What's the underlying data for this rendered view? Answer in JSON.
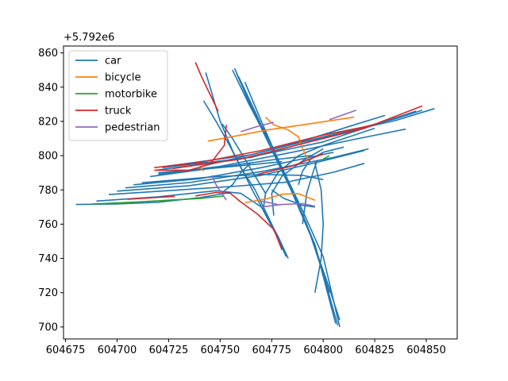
{
  "chart_data": {
    "type": "line",
    "title": "",
    "xlabel": "",
    "ylabel": "",
    "y_offset_label": "+5.792e6",
    "xlim": [
      604674,
      604865
    ],
    "ylim": [
      693,
      864
    ],
    "x_ticks": [
      604675,
      604700,
      604725,
      604750,
      604775,
      604800,
      604825,
      604850
    ],
    "x_tick_labels": [
      "604675",
      "604700",
      "604725",
      "604750",
      "604775",
      "604800",
      "604825",
      "604850"
    ],
    "y_ticks": [
      700,
      720,
      740,
      760,
      780,
      800,
      820,
      840,
      860
    ],
    "y_tick_labels": [
      "700",
      "720",
      "740",
      "760",
      "780",
      "800",
      "820",
      "840",
      "860"
    ],
    "grid": false,
    "legend_position": "top-left",
    "legend": [
      {
        "name": "car",
        "color": "#1f77b4"
      },
      {
        "name": "bicycle",
        "color": "#ff7f0e"
      },
      {
        "name": "motorbike",
        "color": "#2ca02c"
      },
      {
        "name": "truck",
        "color": "#d62728"
      },
      {
        "name": "pedestrian",
        "color": "#9467bd"
      }
    ],
    "series": [
      {
        "name": "car",
        "color": "#1f77b4",
        "tracks": [
          [
            [
              604680,
              771.5
            ],
            [
              604700,
              771.8
            ],
            [
              604720,
              772.8
            ],
            [
              604740,
              775.5
            ],
            [
              604755,
              778.5
            ]
          ],
          [
            [
              604690,
              773.5
            ],
            [
              604720,
              776
            ],
            [
              604748,
              779.5
            ],
            [
              604760,
              778
            ],
            [
              604770,
              770
            ],
            [
              604778,
              752
            ],
            [
              604782,
              741
            ]
          ],
          [
            [
              604696,
              777.3
            ],
            [
              604730,
              780
            ],
            [
              604758,
              782.2
            ],
            [
              604782,
              784.5
            ],
            [
              604805,
              790.3
            ],
            [
              604820,
              795.5
            ]
          ],
          [
            [
              604700,
              779.3
            ],
            [
              604735,
              782.5
            ],
            [
              604770,
              788.5
            ],
            [
              604800,
              797
            ],
            [
              604820,
              803
            ]
          ],
          [
            [
              604704,
              781.2
            ],
            [
              604735,
              784.3
            ],
            [
              604770,
              790.7
            ],
            [
              604805,
              799
            ],
            [
              604822,
              804
            ]
          ],
          [
            [
              604708,
              783
            ],
            [
              604740,
              786.5
            ],
            [
              604770,
              793
            ],
            [
              604805,
              802
            ]
          ],
          [
            [
              604712,
              784.2
            ],
            [
              604745,
              787.5
            ],
            [
              604770,
              789
            ],
            [
              604790,
              788.5
            ],
            [
              604800,
              786
            ]
          ],
          [
            [
              604716,
              787.8
            ],
            [
              604745,
              792.5
            ],
            [
              604775,
              797.5
            ],
            [
              604795,
              800.2
            ]
          ],
          [
            [
              604720,
              790
            ],
            [
              604750,
              793
            ],
            [
              604780,
              796.5
            ]
          ],
          [
            [
              604720,
              789.2
            ],
            [
              604750,
              793.8
            ],
            [
              604785,
              802
            ],
            [
              604815,
              809.5
            ],
            [
              604840,
              815.5
            ]
          ],
          [
            [
              604719,
              791.5
            ],
            [
              604760,
              798
            ],
            [
              604800,
              808
            ],
            [
              604830,
              820
            ],
            [
              604845,
              826
            ]
          ],
          [
            [
              604722,
              793
            ],
            [
              604765,
              799
            ],
            [
              604805,
              812
            ],
            [
              604835,
              821.5
            ],
            [
              604848,
              826.5
            ]
          ],
          [
            [
              604725,
              794
            ],
            [
              604765,
              800.5
            ],
            [
              604800,
              811
            ],
            [
              604835,
              820.5
            ],
            [
              604854,
              827.5
            ]
          ],
          [
            [
              604740,
              793.5
            ],
            [
              604765,
              800.5
            ],
            [
              604790,
              808.5
            ],
            [
              604815,
              818
            ],
            [
              604830,
              823.5
            ]
          ],
          [
            [
              604757,
              851
            ],
            [
              604765,
              829
            ],
            [
              604773,
              811
            ],
            [
              604780,
              793
            ],
            [
              604790,
              768
            ],
            [
              604800,
              741
            ],
            [
              604808,
              700
            ]
          ],
          [
            [
              604756,
              850
            ],
            [
              604764,
              830
            ],
            [
              604771,
              814
            ],
            [
              604776,
              801
            ],
            [
              604786,
              776
            ],
            [
              604796,
              748
            ],
            [
              604807,
              701
            ]
          ],
          [
            [
              604758,
              848
            ],
            [
              604766,
              826
            ],
            [
              604774,
              806
            ],
            [
              604782,
              788
            ],
            [
              604792,
              760
            ],
            [
              604802,
              726
            ],
            [
              604808,
              704
            ]
          ],
          [
            [
              604759,
              846
            ],
            [
              604768,
              823
            ],
            [
              604776,
              801
            ],
            [
              604784,
              781
            ],
            [
              604794,
              753
            ],
            [
              604803,
              720
            ]
          ],
          [
            [
              604762,
              843
            ],
            [
              604770,
              820
            ],
            [
              604778,
              798
            ],
            [
              604786,
              777
            ],
            [
              604796,
              748
            ],
            [
              604806,
              702
            ]
          ],
          [
            [
              604743,
              848.5
            ],
            [
              604750,
              820
            ],
            [
              604756,
              803
            ],
            [
              604766,
              779
            ],
            [
              604778,
              753
            ],
            [
              604783,
              740
            ]
          ],
          [
            [
              604751,
              818.5
            ],
            [
              604756,
              810
            ],
            [
              604761,
              800
            ],
            [
              604766,
              790
            ],
            [
              604772,
              778
            ]
          ],
          [
            [
              604742,
              832
            ],
            [
              604748,
              820
            ],
            [
              604755,
              805
            ],
            [
              604760,
              793
            ],
            [
              604767,
              780
            ],
            [
              604775,
              760
            ],
            [
              604781,
              745
            ]
          ],
          [
            [
              604771,
              769
            ],
            [
              604772,
              778
            ],
            [
              604778,
              790
            ],
            [
              604788,
              800
            ],
            [
              604800,
              806
            ],
            [
              604815,
              812
            ],
            [
              604825,
              816
            ]
          ],
          [
            [
              604776,
              765
            ],
            [
              604775,
              778
            ],
            [
              604780,
              788
            ],
            [
              604790,
              797
            ],
            [
              604800,
              804
            ]
          ],
          [
            [
              604788,
              783
            ],
            [
              604790,
              791
            ],
            [
              604794,
              798
            ],
            [
              604800,
              802
            ],
            [
              604810,
              805
            ]
          ],
          [
            [
              604796,
              795.5
            ],
            [
              604799,
              780
            ],
            [
              604800,
              760
            ],
            [
              604799,
              740
            ],
            [
              604796,
              720
            ]
          ],
          [
            [
              604790,
              760
            ],
            [
              604792,
              778
            ],
            [
              604795,
              790
            ],
            [
              604797,
              797
            ]
          ],
          [
            [
              604752,
              779.5
            ],
            [
              604756,
              783
            ],
            [
              604760,
              790
            ],
            [
              604765,
              796
            ]
          ],
          [
            [
              604775,
              780
            ],
            [
              604781,
              775
            ],
            [
              604790,
              771
            ],
            [
              604796,
              770
            ]
          ]
        ]
      },
      {
        "name": "bicycle",
        "color": "#ff7f0e",
        "tracks": [
          [
            [
              604744,
              808.5
            ],
            [
              604760,
              812
            ],
            [
              604773,
              815
            ],
            [
              604790,
              818
            ],
            [
              604815,
              822.5
            ]
          ],
          [
            [
              604772,
              822.5
            ],
            [
              604776,
              818
            ],
            [
              604783,
              815
            ],
            [
              604788,
              811
            ],
            [
              604790,
              804
            ],
            [
              604793,
              797
            ]
          ],
          [
            [
              604762,
              772.5
            ],
            [
              604773,
              775
            ],
            [
              604780,
              777.5
            ],
            [
              604788,
              777.8
            ],
            [
              604796,
              774
            ]
          ],
          [
            [
              604740,
              793.5
            ],
            [
              604742,
              791
            ]
          ]
        ]
      },
      {
        "name": "motorbike",
        "color": "#2ca02c",
        "tracks": [
          [
            [
              604688,
              771.8
            ],
            [
              604710,
              773
            ],
            [
              604725,
              774
            ],
            [
              604740,
              775
            ],
            [
              604752,
              776.5
            ]
          ],
          [
            [
              604800,
              798
            ],
            [
              604803,
              800
            ]
          ]
        ]
      },
      {
        "name": "truck",
        "color": "#d62728",
        "tracks": [
          [
            [
              604738,
              854.5
            ],
            [
              604741,
              846
            ],
            [
              604745,
              836
            ],
            [
              604749,
              826
            ]
          ],
          [
            [
              604718,
              791.5
            ],
            [
              604735,
              791.5
            ],
            [
              604745,
              795
            ],
            [
              604752,
              806
            ],
            [
              604753,
              818
            ]
          ],
          [
            [
              604718,
              793
            ],
            [
              604740,
              796
            ],
            [
              604770,
              803
            ],
            [
              604800,
              812
            ],
            [
              604825,
              818
            ]
          ],
          [
            [
              604727,
              792.5
            ],
            [
              604760,
              798
            ],
            [
              604790,
              807
            ],
            [
              604820,
              816
            ],
            [
              604848,
              829
            ]
          ],
          [
            [
              604738,
              776.5
            ],
            [
              604748,
              778.5
            ],
            [
              604755,
              778
            ],
            [
              604760,
              773
            ],
            [
              604768,
              766
            ],
            [
              604776,
              757
            ],
            [
              604780,
              745
            ]
          ],
          [
            [
              604705,
              774.5
            ],
            [
              604718,
              775.5
            ],
            [
              604728,
              776.2
            ]
          ],
          [
            [
              604768,
              789
            ],
            [
              604785,
              794
            ],
            [
              604800,
              801
            ]
          ]
        ]
      },
      {
        "name": "pedestrian",
        "color": "#9467bd",
        "tracks": [
          [
            [
              604746,
              788.5
            ],
            [
              604748,
              783
            ],
            [
              604751,
              777.5
            ],
            [
              604753,
              774
            ]
          ],
          [
            [
              604760,
              814
            ],
            [
              604768,
              817
            ],
            [
              604776,
              819.5
            ]
          ],
          [
            [
              604803,
              821
            ],
            [
              604816,
              826.5
            ]
          ],
          [
            [
              604770,
              770
            ],
            [
              604780,
              771.5
            ],
            [
              604790,
              772
            ],
            [
              604796,
              770.5
            ]
          ],
          [
            [
              604770,
              773.5
            ],
            [
              604778,
              771.5
            ]
          ]
        ]
      }
    ]
  }
}
